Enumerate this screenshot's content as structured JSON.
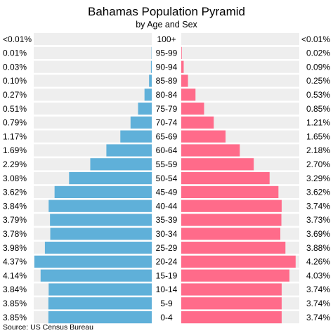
{
  "chart_data": {
    "type": "bar",
    "orientation": "horizontal-pyramid",
    "title": "Bahamas Population Pyramid",
    "subtitle": "by Age and Sex",
    "source": "US Census Bureau",
    "categories": [
      "100+",
      "95-99",
      "90-94",
      "85-89",
      "80-84",
      "75-79",
      "70-74",
      "65-69",
      "60-64",
      "55-59",
      "50-54",
      "45-49",
      "40-44",
      "35-39",
      "30-34",
      "25-29",
      "20-24",
      "15-19",
      "10-14",
      "5-9",
      "0-4"
    ],
    "series": [
      {
        "side": "left",
        "color": "#5fb0d9",
        "values": [
          0.005,
          0.01,
          0.03,
          0.1,
          0.27,
          0.51,
          0.79,
          1.17,
          1.69,
          2.29,
          3.08,
          3.62,
          3.84,
          3.79,
          3.78,
          3.98,
          4.37,
          4.14,
          3.84,
          3.85,
          3.85
        ],
        "labels": [
          "<0.01%",
          "0.01%",
          "0.03%",
          "0.10%",
          "0.27%",
          "0.51%",
          "0.79%",
          "1.17%",
          "1.69%",
          "2.29%",
          "3.08%",
          "3.62%",
          "3.84%",
          "3.79%",
          "3.78%",
          "3.98%",
          "4.37%",
          "4.14%",
          "3.84%",
          "3.85%",
          "3.85%"
        ]
      },
      {
        "side": "right",
        "color": "#ff6b8a",
        "values": [
          0.005,
          0.02,
          0.09,
          0.25,
          0.53,
          0.85,
          1.21,
          1.65,
          2.18,
          2.7,
          3.29,
          3.62,
          3.74,
          3.73,
          3.69,
          3.88,
          4.26,
          4.03,
          3.74,
          3.74,
          3.74
        ],
        "labels": [
          "<0.01%",
          "0.02%",
          "0.09%",
          "0.25%",
          "0.53%",
          "0.85%",
          "1.21%",
          "1.65%",
          "2.18%",
          "2.70%",
          "3.29%",
          "3.62%",
          "3.74%",
          "3.73%",
          "3.69%",
          "3.88%",
          "4.26%",
          "4.03%",
          "3.74%",
          "3.74%",
          "3.74%"
        ]
      }
    ],
    "xlim": [
      0,
      4.37
    ],
    "grid": false,
    "row_background": "#eeeeee"
  }
}
